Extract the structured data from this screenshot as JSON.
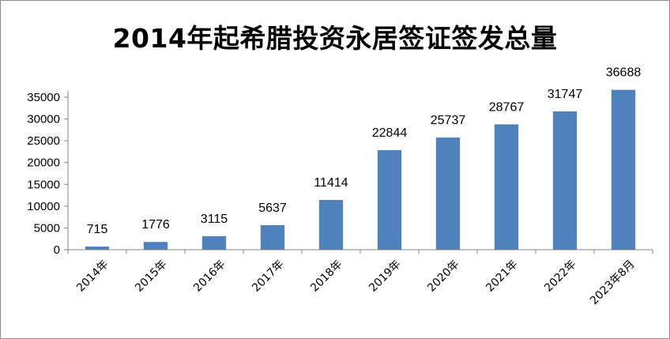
{
  "chart_data": {
    "type": "bar",
    "title": "2014年起希腊投资永居签证签发总量",
    "categories": [
      "2014年",
      "2015年",
      "2016年",
      "2017年",
      "2018年",
      "2019年",
      "2020年",
      "2021年",
      "2022年",
      "2023年8月"
    ],
    "values": [
      715,
      1776,
      3115,
      5637,
      11414,
      22844,
      25737,
      28767,
      31747,
      36688
    ],
    "ylim": [
      0,
      35000
    ],
    "yticks": [
      0,
      5000,
      10000,
      15000,
      20000,
      25000,
      30000,
      35000
    ],
    "grid": false,
    "legend": "none",
    "bar_color": "#4f81bd",
    "show_data_labels": true
  }
}
